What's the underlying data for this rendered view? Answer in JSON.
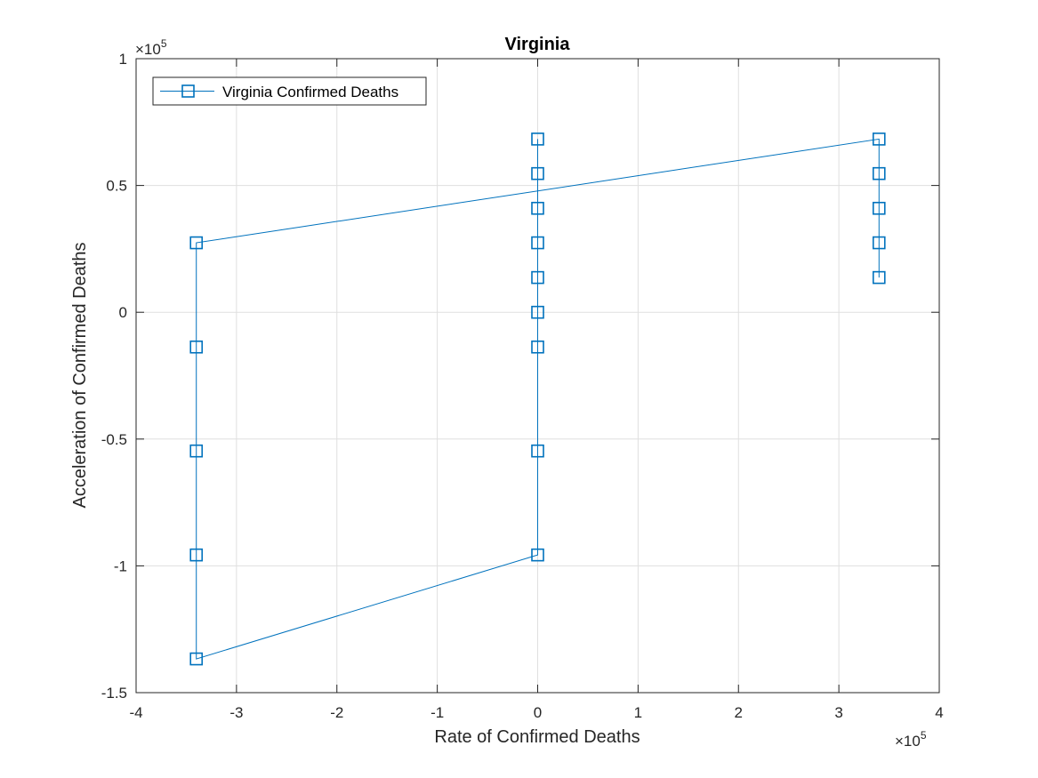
{
  "colors": {
    "series": "#0072BD",
    "axis": "#262626",
    "grid": "#DFDFDF",
    "background": "#FFFFFF"
  },
  "chart_data": {
    "type": "line",
    "title": "Virginia",
    "xlabel": "Rate of Confirmed Deaths",
    "ylabel": "Acceleration of Confirmed Deaths",
    "xlim": [
      -400000,
      400000
    ],
    "ylim": [
      -150000,
      100000
    ],
    "x_ticks": [
      -400000,
      -300000,
      -200000,
      -100000,
      0,
      100000,
      200000,
      300000,
      400000
    ],
    "y_ticks": [
      -150000,
      -100000,
      -50000,
      0,
      50000,
      100000
    ],
    "x_tick_labels": [
      "-4",
      "-3",
      "-2",
      "-1",
      "0",
      "1",
      "2",
      "3",
      "4"
    ],
    "y_tick_labels": [
      "-1.5",
      "-1",
      "-0.5",
      "0",
      "0.5",
      "1"
    ],
    "x_exponent": {
      "base": "×10",
      "power": "5"
    },
    "y_exponent": {
      "base": "×10",
      "power": "5"
    },
    "grid": true,
    "legend": {
      "position": "top-left",
      "entries": [
        "Virginia Confirmed Deaths"
      ]
    },
    "marker": "square",
    "series": [
      {
        "name": "Virginia Confirmed Deaths",
        "x": [
          340000,
          340000,
          340000,
          340000,
          340000,
          -340000,
          -340000,
          -340000,
          -340000,
          -340000,
          0,
          0,
          0,
          0,
          0,
          0,
          0,
          0,
          0
        ],
        "y": [
          13700,
          27400,
          41000,
          54700,
          68300,
          27400,
          -13700,
          -54700,
          -95700,
          -136700,
          -95700,
          -54700,
          -13700,
          0,
          13700,
          27400,
          41000,
          54700,
          68300
        ]
      }
    ]
  }
}
